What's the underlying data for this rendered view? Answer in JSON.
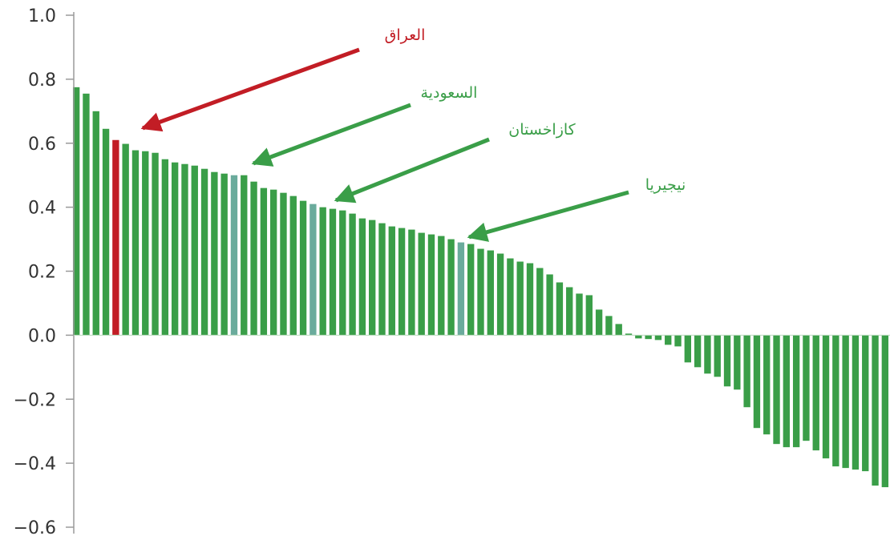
{
  "chart_data": {
    "type": "bar",
    "ylim": [
      -0.6,
      1.0
    ],
    "yticks": [
      1.0,
      0.8,
      0.6,
      0.4,
      0.2,
      0.0,
      -0.2,
      -0.4,
      -0.6
    ],
    "ytick_labels": [
      "1.0",
      "0.8",
      "0.6",
      "0.4",
      "0.2",
      "0.0",
      "−0.2",
      "−0.4",
      "−0.6"
    ],
    "grid": false,
    "colors": {
      "default": "#3a9e48",
      "highlight_red": "#c21d25",
      "highlight_teal": "#6aab9c",
      "axis": "#9a9a9a"
    },
    "values": [
      0.775,
      0.755,
      0.7,
      0.645,
      0.61,
      0.598,
      0.578,
      0.575,
      0.57,
      0.55,
      0.54,
      0.535,
      0.53,
      0.52,
      0.51,
      0.505,
      0.5,
      0.5,
      0.48,
      0.46,
      0.455,
      0.445,
      0.435,
      0.42,
      0.41,
      0.4,
      0.395,
      0.39,
      0.38,
      0.365,
      0.36,
      0.35,
      0.34,
      0.335,
      0.33,
      0.32,
      0.315,
      0.31,
      0.3,
      0.29,
      0.285,
      0.27,
      0.265,
      0.255,
      0.24,
      0.23,
      0.225,
      0.21,
      0.19,
      0.165,
      0.15,
      0.13,
      0.125,
      0.08,
      0.06,
      0.035,
      0.005,
      -0.01,
      -0.012,
      -0.015,
      -0.03,
      -0.035,
      -0.085,
      -0.1,
      -0.12,
      -0.13,
      -0.16,
      -0.17,
      -0.225,
      -0.29,
      -0.31,
      -0.34,
      -0.35,
      -0.35,
      -0.33,
      -0.36,
      -0.385,
      -0.41,
      -0.415,
      -0.42,
      -0.425,
      -0.47,
      -0.475
    ],
    "highlights": [
      {
        "index": 4,
        "color": "highlight_red"
      },
      {
        "index": 16,
        "color": "highlight_teal"
      },
      {
        "index": 24,
        "color": "highlight_teal"
      },
      {
        "index": 39,
        "color": "highlight_teal"
      }
    ],
    "annotations": [
      {
        "label": "العراق",
        "target_index": 4,
        "color": "#c21d25"
      },
      {
        "label": "السعودية",
        "target_index": 16,
        "color": "#3a9e48"
      },
      {
        "label": "كازاخستان",
        "target_index": 24,
        "color": "#3a9e48"
      },
      {
        "label": "نيجيريا",
        "target_index": 39,
        "color": "#3a9e48"
      }
    ]
  }
}
